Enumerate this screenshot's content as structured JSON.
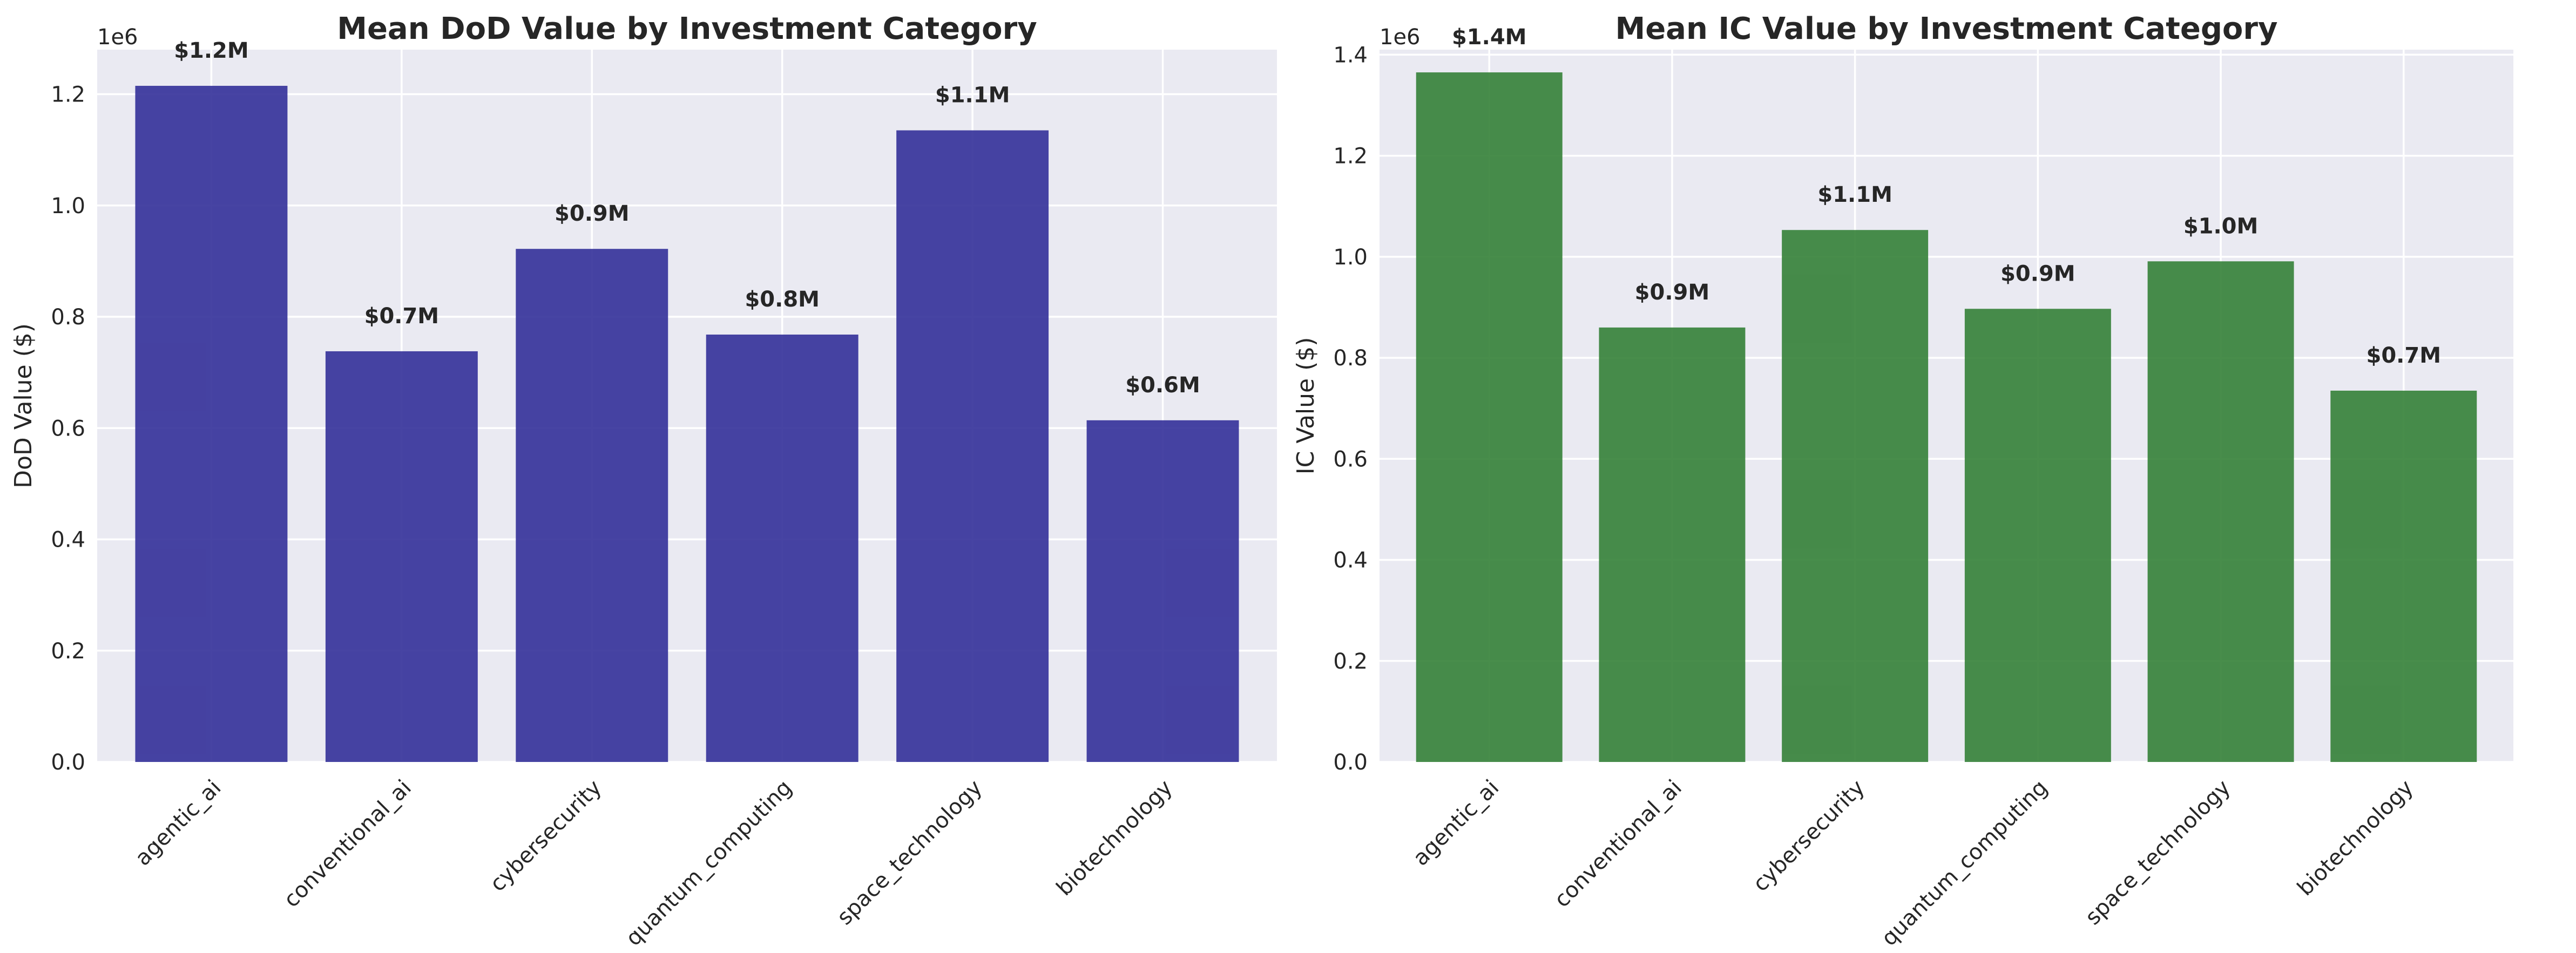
{
  "chart_data": [
    {
      "type": "bar",
      "title": "Mean DoD Value by Investment Category",
      "xlabel": "",
      "ylabel": "DoD Value ($)",
      "offset_label": "1e6",
      "categories": [
        "agentic_ai",
        "conventional_ai",
        "cybersecurity",
        "quantum_computing",
        "space_technology",
        "biotechnology"
      ],
      "values": [
        1215000,
        738000,
        922000,
        768000,
        1135000,
        614000
      ],
      "data_labels": [
        "$1.2M",
        "$0.7M",
        "$0.9M",
        "$0.8M",
        "$1.1M",
        "$0.6M"
      ],
      "ylim": [
        0,
        1280000
      ],
      "yticks": [
        0,
        200000,
        400000,
        600000,
        800000,
        1000000,
        1200000
      ],
      "ytick_labels": [
        "0.0",
        "0.2",
        "0.4",
        "0.6",
        "0.8",
        "1.0",
        "1.2"
      ],
      "grid": true,
      "color": "#2e2a96"
    },
    {
      "type": "bar",
      "title": "Mean IC Value by Investment Category",
      "xlabel": "",
      "ylabel": "IC Value ($)",
      "offset_label": "1e6",
      "categories": [
        "agentic_ai",
        "conventional_ai",
        "cybersecurity",
        "quantum_computing",
        "space_technology",
        "biotechnology"
      ],
      "values": [
        1365000,
        860000,
        1053000,
        897000,
        991000,
        735000
      ],
      "data_labels": [
        "$1.4M",
        "$0.9M",
        "$1.1M",
        "$0.9M",
        "$1.0M",
        "$0.7M"
      ],
      "ylim": [
        0,
        1410000
      ],
      "yticks": [
        0,
        200000,
        400000,
        600000,
        800000,
        1000000,
        1200000,
        1400000
      ],
      "ytick_labels": [
        "0.0",
        "0.2",
        "0.4",
        "0.6",
        "0.8",
        "1.0",
        "1.2",
        "1.4"
      ],
      "grid": true,
      "color": "#2f7d32"
    }
  ]
}
